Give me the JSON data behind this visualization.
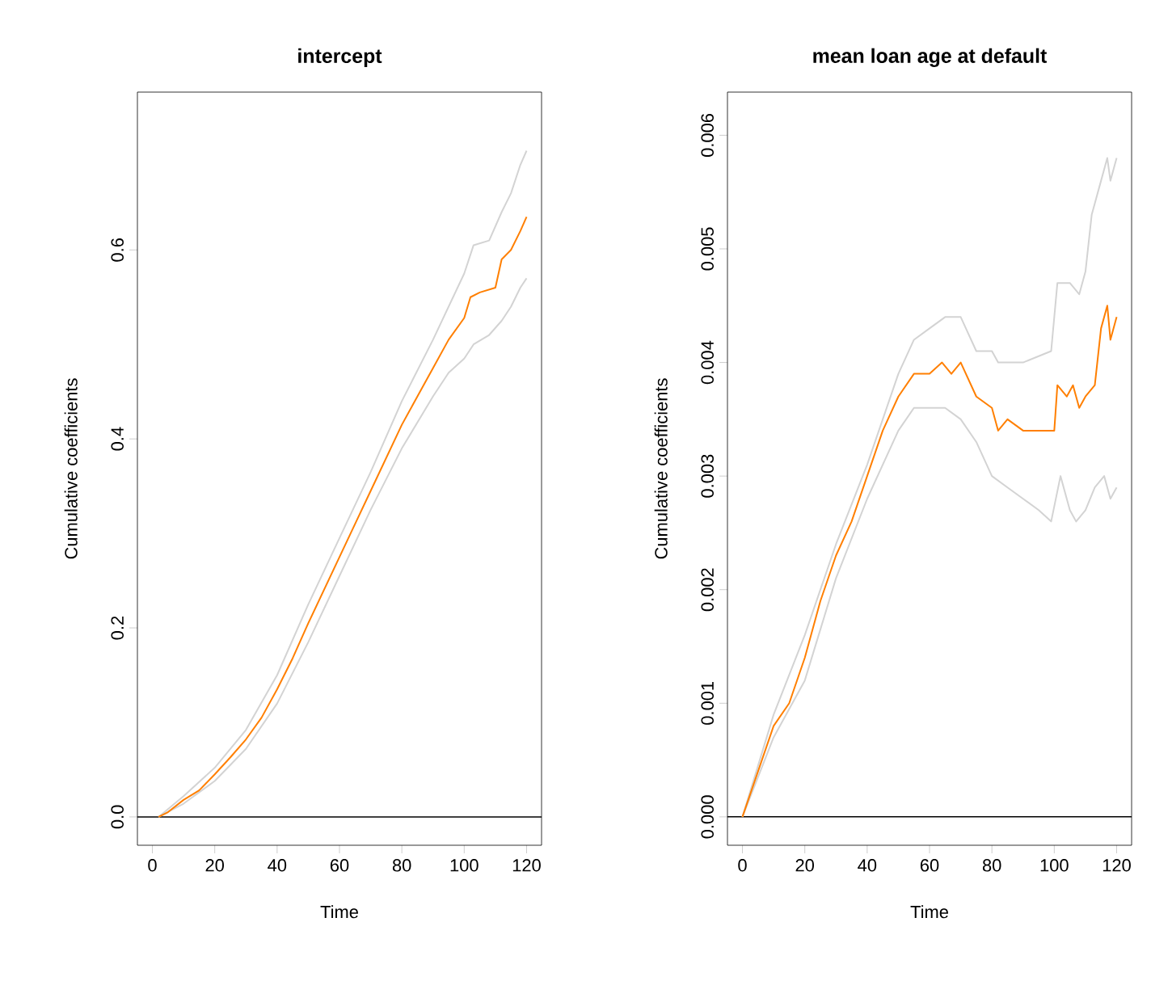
{
  "chart_data": [
    {
      "type": "line",
      "title": "intercept",
      "xlabel": "Time",
      "ylabel": "Cumulative coefficients",
      "xlim": [
        -4.8,
        124.8
      ],
      "ylim": [
        -0.03,
        0.767
      ],
      "xticks": [
        0,
        20,
        40,
        60,
        80,
        100,
        120
      ],
      "yticks": [
        {
          "value": 0,
          "label": "0.0"
        },
        {
          "value": 0.2,
          "label": "0.2"
        },
        {
          "value": 0.4,
          "label": "0.4"
        },
        {
          "value": 0.6,
          "label": "0.6"
        }
      ],
      "ref_lines": [
        {
          "axis": "y",
          "value": 0,
          "color": "#000000"
        }
      ],
      "series": [
        {
          "color": "#d3d3d3",
          "x": [
            2,
            10,
            20,
            30,
            40,
            50,
            60,
            70,
            80,
            90,
            95,
            100,
            103,
            108,
            112,
            115,
            118,
            120
          ],
          "values": [
            0,
            0.022,
            0.052,
            0.092,
            0.15,
            0.225,
            0.295,
            0.365,
            0.44,
            0.505,
            0.54,
            0.575,
            0.605,
            0.61,
            0.64,
            0.66,
            0.69,
            0.705
          ]
        },
        {
          "color": "#d3d3d3",
          "x": [
            2,
            10,
            20,
            30,
            40,
            50,
            60,
            70,
            80,
            90,
            95,
            100,
            103,
            108,
            112,
            115,
            118,
            120
          ],
          "values": [
            0,
            0.014,
            0.038,
            0.072,
            0.12,
            0.185,
            0.255,
            0.325,
            0.39,
            0.445,
            0.47,
            0.485,
            0.5,
            0.51,
            0.525,
            0.54,
            0.56,
            0.57
          ]
        },
        {
          "color": "#ff7f00",
          "x": [
            2,
            5,
            10,
            15,
            20,
            25,
            30,
            35,
            40,
            45,
            50,
            55,
            60,
            65,
            70,
            75,
            80,
            85,
            90,
            95,
            100,
            102,
            105,
            110,
            112,
            115,
            118,
            120
          ],
          "values": [
            0,
            0.005,
            0.018,
            0.028,
            0.045,
            0.063,
            0.082,
            0.105,
            0.135,
            0.168,
            0.205,
            0.24,
            0.275,
            0.31,
            0.345,
            0.38,
            0.415,
            0.445,
            0.475,
            0.505,
            0.528,
            0.55,
            0.555,
            0.56,
            0.59,
            0.6,
            0.62,
            0.635
          ]
        }
      ]
    },
    {
      "type": "line",
      "title": "mean loan age at default",
      "xlabel": "Time",
      "ylabel": "Cumulative coefficients",
      "xlim": [
        -4.8,
        124.8
      ],
      "ylim": [
        -0.00025,
        0.00638
      ],
      "xticks": [
        0,
        20,
        40,
        60,
        80,
        100,
        120
      ],
      "yticks": [
        {
          "value": 0,
          "label": "0.000"
        },
        {
          "value": 0.001,
          "label": "0.001"
        },
        {
          "value": 0.002,
          "label": "0.002"
        },
        {
          "value": 0.003,
          "label": "0.003"
        },
        {
          "value": 0.004,
          "label": "0.004"
        },
        {
          "value": 0.005,
          "label": "0.005"
        },
        {
          "value": 0.006,
          "label": "0.006"
        }
      ],
      "ref_lines": [
        {
          "axis": "y",
          "value": 0,
          "color": "#000000"
        }
      ],
      "series": [
        {
          "color": "#d3d3d3",
          "x": [
            0,
            10,
            20,
            30,
            40,
            50,
            55,
            60,
            65,
            70,
            75,
            80,
            82,
            90,
            99,
            101,
            105,
            108,
            110,
            112,
            115,
            117,
            118,
            120
          ],
          "values": [
            0,
            0.0009,
            0.0016,
            0.0024,
            0.0031,
            0.0039,
            0.0042,
            0.0043,
            0.0044,
            0.0044,
            0.0041,
            0.0041,
            0.004,
            0.004,
            0.0041,
            0.0047,
            0.0047,
            0.0046,
            0.0048,
            0.0053,
            0.0056,
            0.0058,
            0.0056,
            0.0058
          ]
        },
        {
          "color": "#d3d3d3",
          "x": [
            0,
            10,
            20,
            30,
            40,
            50,
            55,
            60,
            65,
            70,
            75,
            80,
            85,
            90,
            95,
            99,
            102,
            105,
            107,
            110,
            113,
            116,
            118,
            120
          ],
          "values": [
            0,
            0.0007,
            0.0012,
            0.0021,
            0.0028,
            0.0034,
            0.0036,
            0.0036,
            0.0036,
            0.0035,
            0.0033,
            0.003,
            0.0029,
            0.0028,
            0.0027,
            0.0026,
            0.003,
            0.0027,
            0.0026,
            0.0027,
            0.0029,
            0.003,
            0.0028,
            0.0029
          ]
        },
        {
          "color": "#ff7f00",
          "x": [
            0,
            5,
            10,
            15,
            20,
            25,
            30,
            35,
            40,
            45,
            50,
            55,
            60,
            64,
            67,
            70,
            75,
            80,
            82,
            85,
            90,
            95,
            99,
            100,
            101,
            104,
            106,
            108,
            110,
            113,
            115,
            117,
            118,
            120
          ],
          "values": [
            0,
            0.0004,
            0.0008,
            0.001,
            0.0014,
            0.0019,
            0.0023,
            0.0026,
            0.003,
            0.0034,
            0.0037,
            0.0039,
            0.0039,
            0.004,
            0.0039,
            0.004,
            0.0037,
            0.0036,
            0.0034,
            0.0035,
            0.0034,
            0.0034,
            0.0034,
            0.0034,
            0.0038,
            0.0037,
            0.0038,
            0.0036,
            0.0037,
            0.0038,
            0.0043,
            0.0045,
            0.0042,
            0.0044
          ]
        }
      ]
    }
  ]
}
